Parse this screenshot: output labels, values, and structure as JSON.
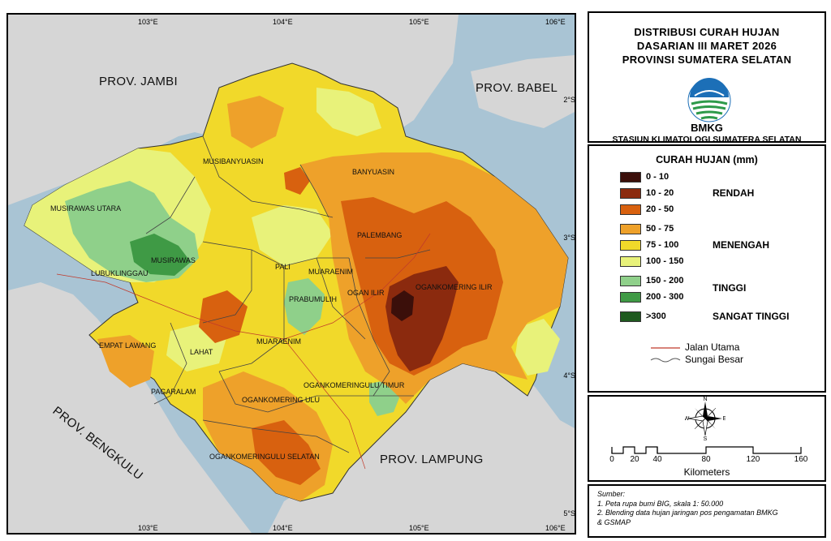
{
  "map": {
    "graticule": {
      "lon_labels": [
        "103°E",
        "104°E",
        "105°E",
        "106°E"
      ],
      "lat_labels": [
        "2°S",
        "3°S",
        "4°S",
        "5°S"
      ]
    },
    "neighbors": [
      "PROV. JAMBI",
      "PROV. BABEL",
      "PROV. BENGKULU",
      "PROV. LAMPUNG"
    ],
    "regions": [
      "MUSIBANYUASIN",
      "BANYUASIN",
      "MUSIRAWAS UTARA",
      "MUSIRAWAS",
      "LUBUKLINGGAU",
      "PALEMBANG",
      "PALI",
      "MUARAENIM",
      "OGAN ILIR",
      "OGANKOMERING ILIR",
      "PRABUMULIH",
      "EMPAT LAWANG",
      "LAHAT",
      "MUARAENIM",
      "PAGARALAM",
      "OGANKOMERINGULU TIMUR",
      "OGANKOMERING ULU",
      "OGANKOMERINGULU SELATAN"
    ]
  },
  "title": {
    "lines": [
      "DISTRIBUSI CURAH HUJAN",
      "DASARIAN III MARET 2026",
      "PROVINSI SUMATERA SELATAN"
    ],
    "agency_short": "BMKG",
    "agency_full": "STASIUN KLIMATOLOGI SUMATERA SELATAN"
  },
  "legend": {
    "title": "CURAH HUJAN (mm)",
    "classes": [
      {
        "label": "0 - 10",
        "color": "#3b0f0a"
      },
      {
        "label": "10 - 20",
        "color": "#8b2a0e"
      },
      {
        "label": "20 - 50",
        "color": "#d8610f"
      },
      {
        "label": "50 - 75",
        "color": "#eea12a"
      },
      {
        "label": "75 - 100",
        "color": "#f1d92a"
      },
      {
        "label": "100 - 150",
        "color": "#e8f27a"
      },
      {
        "label": "150 - 200",
        "color": "#8fd08a"
      },
      {
        "label": "200 - 300",
        "color": "#3f9a45"
      },
      {
        "label": ">300",
        "color": "#1f5a1f"
      }
    ],
    "categories": [
      "RENDAH",
      "MENENGAH",
      "TINGGI",
      "SANGAT TINGGI"
    ],
    "lines": [
      {
        "label": "Jalan Utama",
        "color": "#c0392b"
      },
      {
        "label": "Sungai Besar",
        "color": "#555555"
      }
    ]
  },
  "compass": {
    "n": "N",
    "s": "S",
    "e": "E",
    "w": "W"
  },
  "scale": {
    "ticks": [
      "0",
      "20",
      "40",
      "80",
      "120",
      "160"
    ],
    "unit": "Kilometers"
  },
  "source": {
    "lines": [
      "Sumber:",
      "1. Peta rupa bumi BIG, skala 1: 50.000",
      "2. Blending data hujan jaringan pos pengamatan BMKG",
      "& GSMAP"
    ]
  }
}
